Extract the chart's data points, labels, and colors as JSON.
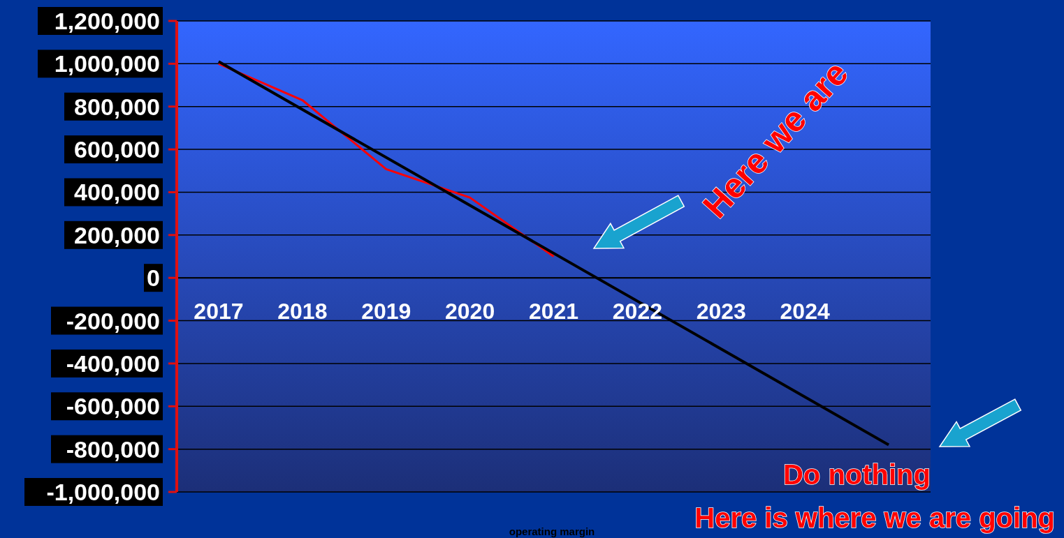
{
  "chart_data": {
    "type": "line",
    "xlabel": "operating margin",
    "categories": [
      "2017",
      "2018",
      "2019",
      "2020",
      "2021",
      "2022",
      "2023",
      "2024",
      null
    ],
    "series": [
      {
        "color": "#ff0000",
        "values": [
          1000000,
          830000,
          508000,
          375000,
          100000,
          null,
          null,
          null,
          null
        ]
      },
      {
        "color": "#000000",
        "values": [
          1010000,
          null,
          null,
          null,
          null,
          null,
          null,
          null,
          -780000
        ]
      }
    ],
    "ylim": [
      -1000000,
      1200000
    ],
    "yticks": [
      {
        "value": -1000000,
        "label": "-1,000,000"
      },
      {
        "value": -800000,
        "label": "-800,000"
      },
      {
        "value": -600000,
        "label": "-600,000"
      },
      {
        "value": -400000,
        "label": "-400,000"
      },
      {
        "value": -200000,
        "label": "-200,000"
      },
      0,
      {
        "value": 200000,
        "label": "200,000"
      },
      {
        "value": 400000,
        "label": "400,000"
      },
      {
        "value": 600000,
        "label": "600,000"
      },
      {
        "value": 800000,
        "label": "800,000"
      },
      {
        "value": 1000000,
        "label": "1,000,000"
      },
      {
        "value": 1200000,
        "label": "1,200,000"
      }
    ],
    "grid": "y",
    "marker": "none",
    "line_style": "solid",
    "annotations": [
      "Here we are",
      "Do nothing",
      "Here is where we are going"
    ]
  }
}
